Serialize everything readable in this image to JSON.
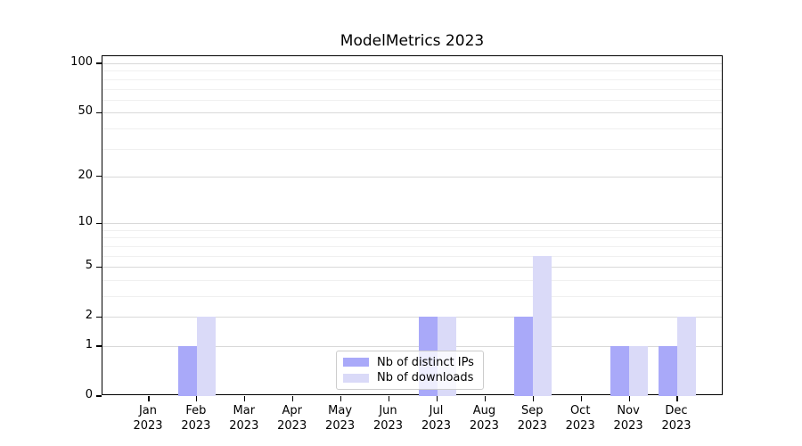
{
  "title": "ModelMetrics 2023",
  "chart_data": {
    "type": "bar",
    "title": "ModelMetrics 2023",
    "categories": [
      "Jan",
      "Feb",
      "Mar",
      "Apr",
      "May",
      "Jun",
      "Jul",
      "Aug",
      "Sep",
      "Oct",
      "Nov",
      "Dec"
    ],
    "category_year": "2023",
    "series": [
      {
        "name": "Nb of distinct IPs",
        "color": "#a9a9f9",
        "values": [
          0,
          1,
          0,
          0,
          0,
          0,
          2,
          0,
          2,
          0,
          1,
          1
        ]
      },
      {
        "name": "Nb of downloads",
        "color": "#dadaf8",
        "values": [
          0,
          2,
          0,
          0,
          0,
          0,
          2,
          0,
          6,
          0,
          1,
          2
        ]
      }
    ],
    "xlabel": "",
    "ylabel": "",
    "yscale": "log1p",
    "ylim": [
      0,
      110
    ],
    "yticks_major": [
      0,
      1,
      2,
      5,
      10,
      20,
      50,
      100
    ],
    "yticks_minor": [
      3,
      4,
      6,
      7,
      8,
      9,
      30,
      40,
      60,
      70,
      80,
      90
    ],
    "grid": "horizontal-on",
    "legend_position": "lower-center-inside"
  },
  "colors": {
    "grid_major": "#d9d9d9",
    "grid_minor": "#f0f0f0",
    "axis": "#000000",
    "legend_border": "#cccccc"
  }
}
